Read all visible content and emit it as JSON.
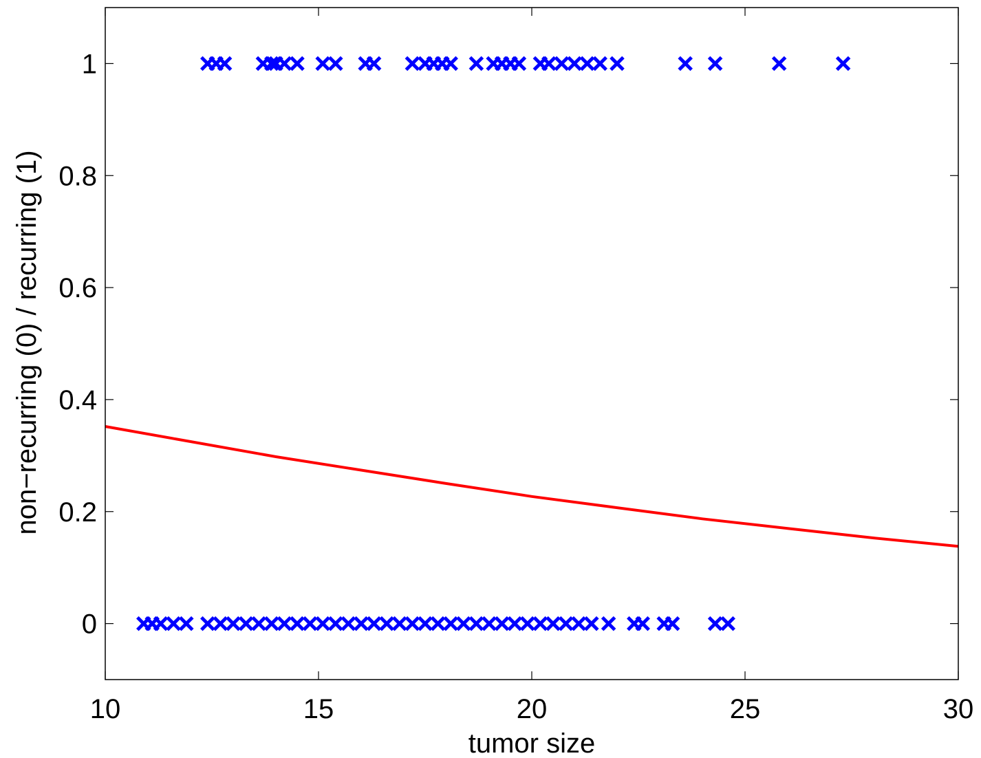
{
  "chart_data": {
    "type": "scatter",
    "xlabel": "tumor size",
    "ylabel": "non−recurring (0) / recurring (1)",
    "xlim": [
      10,
      30
    ],
    "ylim": [
      -0.1,
      1.1
    ],
    "x_ticks": [
      "10",
      "15",
      "20",
      "25",
      "30"
    ],
    "y_ticks": [
      "0",
      "0.2",
      "0.4",
      "0.6",
      "0.8",
      "1"
    ],
    "x_tick_values": [
      10,
      15,
      20,
      25,
      30
    ],
    "y_tick_values": [
      0,
      0.2,
      0.4,
      0.6,
      0.8,
      1
    ],
    "grid": false,
    "series": [
      {
        "marker": "x",
        "color": "#0000ff",
        "points": [
          [
            12.4,
            1
          ],
          [
            12.6,
            1
          ],
          [
            12.8,
            1
          ],
          [
            13.7,
            1
          ],
          [
            13.9,
            1
          ],
          [
            14.0,
            1
          ],
          [
            14.2,
            1
          ],
          [
            14.5,
            1
          ],
          [
            15.1,
            1
          ],
          [
            15.4,
            1
          ],
          [
            16.1,
            1
          ],
          [
            16.3,
            1
          ],
          [
            17.2,
            1
          ],
          [
            17.5,
            1
          ],
          [
            17.7,
            1
          ],
          [
            17.9,
            1
          ],
          [
            18.1,
            1
          ],
          [
            18.7,
            1
          ],
          [
            19.1,
            1
          ],
          [
            19.3,
            1
          ],
          [
            19.5,
            1
          ],
          [
            19.7,
            1
          ],
          [
            20.2,
            1
          ],
          [
            20.4,
            1
          ],
          [
            20.7,
            1
          ],
          [
            21.0,
            1
          ],
          [
            21.3,
            1
          ],
          [
            21.6,
            1
          ],
          [
            22.0,
            1
          ],
          [
            23.6,
            1
          ],
          [
            24.3,
            1
          ],
          [
            25.8,
            1
          ],
          [
            27.3,
            1
          ],
          [
            10.9,
            0
          ],
          [
            11.1,
            0
          ],
          [
            11.3,
            0
          ],
          [
            11.6,
            0
          ],
          [
            11.9,
            0
          ],
          [
            12.4,
            0
          ],
          [
            12.7,
            0
          ],
          [
            13.0,
            0
          ],
          [
            13.3,
            0
          ],
          [
            13.6,
            0
          ],
          [
            13.9,
            0
          ],
          [
            14.2,
            0
          ],
          [
            14.5,
            0
          ],
          [
            14.8,
            0
          ],
          [
            15.1,
            0
          ],
          [
            15.4,
            0
          ],
          [
            15.7,
            0
          ],
          [
            16.0,
            0
          ],
          [
            16.3,
            0
          ],
          [
            16.6,
            0
          ],
          [
            16.9,
            0
          ],
          [
            17.2,
            0
          ],
          [
            17.5,
            0
          ],
          [
            17.8,
            0
          ],
          [
            18.1,
            0
          ],
          [
            18.4,
            0
          ],
          [
            18.7,
            0
          ],
          [
            19.0,
            0
          ],
          [
            19.3,
            0
          ],
          [
            19.6,
            0
          ],
          [
            19.9,
            0
          ],
          [
            20.2,
            0
          ],
          [
            20.5,
            0
          ],
          [
            20.8,
            0
          ],
          [
            21.1,
            0
          ],
          [
            21.4,
            0
          ],
          [
            21.8,
            0
          ],
          [
            22.4,
            0
          ],
          [
            22.6,
            0
          ],
          [
            23.1,
            0
          ],
          [
            23.3,
            0
          ],
          [
            24.3,
            0
          ],
          [
            24.6,
            0
          ]
        ]
      },
      {
        "marker": "line",
        "color": "#ff0000",
        "points": [
          [
            10,
            0.352
          ],
          [
            12,
            0.325
          ],
          [
            14,
            0.298
          ],
          [
            16,
            0.274
          ],
          [
            18,
            0.25
          ],
          [
            20,
            0.227
          ],
          [
            22,
            0.207
          ],
          [
            24,
            0.187
          ],
          [
            26,
            0.17
          ],
          [
            28,
            0.153
          ],
          [
            30,
            0.138
          ]
        ]
      }
    ]
  }
}
